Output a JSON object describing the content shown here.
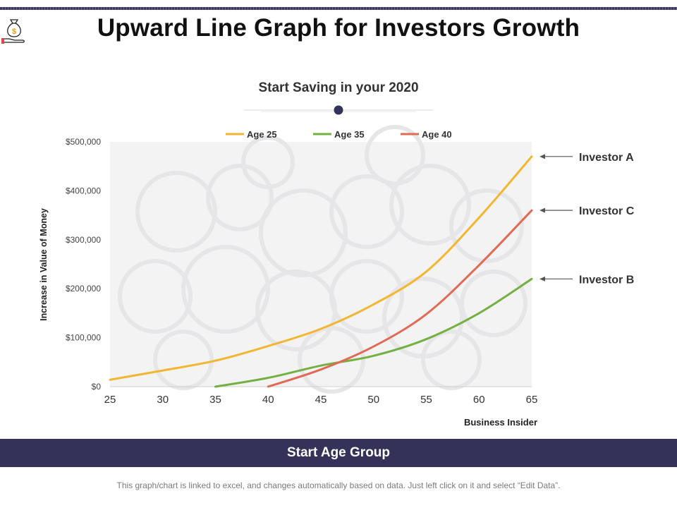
{
  "page": {
    "title": "Upward Line Graph for Investors Growth",
    "banner": "Start Age Group",
    "footnote": "This graph/chart is linked to excel, and changes automatically based on data. Just left click on it and select “Edit Data”."
  },
  "colors": {
    "title": "#111111",
    "banner": "#35325a",
    "age25": "#f2b630",
    "age35": "#75b043",
    "age40": "#e06a55",
    "slider_dot": "#35325a"
  },
  "icons": {
    "logo": "money-bag-hand-icon"
  },
  "chart_data": {
    "type": "line",
    "title": "Start Saving in your 2020",
    "xlabel": "Business Insider",
    "ylabel": "Increase in Value of Money",
    "x": [
      25,
      30,
      35,
      40,
      45,
      50,
      55,
      60,
      65
    ],
    "xlim": [
      25,
      65
    ],
    "ylim": [
      0,
      500000
    ],
    "yticks": [
      {
        "value": 0,
        "label": "$0"
      },
      {
        "value": 100000,
        "label": "$100,000"
      },
      {
        "value": 200000,
        "label": "$200,000"
      },
      {
        "value": 300000,
        "label": "$300,000"
      },
      {
        "value": 400000,
        "label": "$400,000"
      },
      {
        "value": 500000,
        "label": "$500,000"
      }
    ],
    "legend_position": "top-center",
    "series": [
      {
        "name": "Age 25",
        "color": "#f2b630",
        "annotation": "Investor A",
        "x": [
          25,
          30,
          35,
          40,
          45,
          50,
          55,
          60,
          65
        ],
        "values": [
          14000,
          33000,
          53000,
          83000,
          118000,
          168000,
          235000,
          345000,
          470000
        ]
      },
      {
        "name": "Age 35",
        "color": "#75b043",
        "annotation": "Investor B",
        "x": [
          35,
          40,
          45,
          50,
          55,
          60,
          65
        ],
        "values": [
          0,
          18000,
          43000,
          63000,
          97000,
          150000,
          220000
        ]
      },
      {
        "name": "Age 40",
        "color": "#e06a55",
        "annotation": "Investor C",
        "x": [
          40,
          45,
          50,
          55,
          60,
          65
        ],
        "values": [
          0,
          35000,
          82000,
          148000,
          248000,
          360000
        ]
      }
    ]
  }
}
